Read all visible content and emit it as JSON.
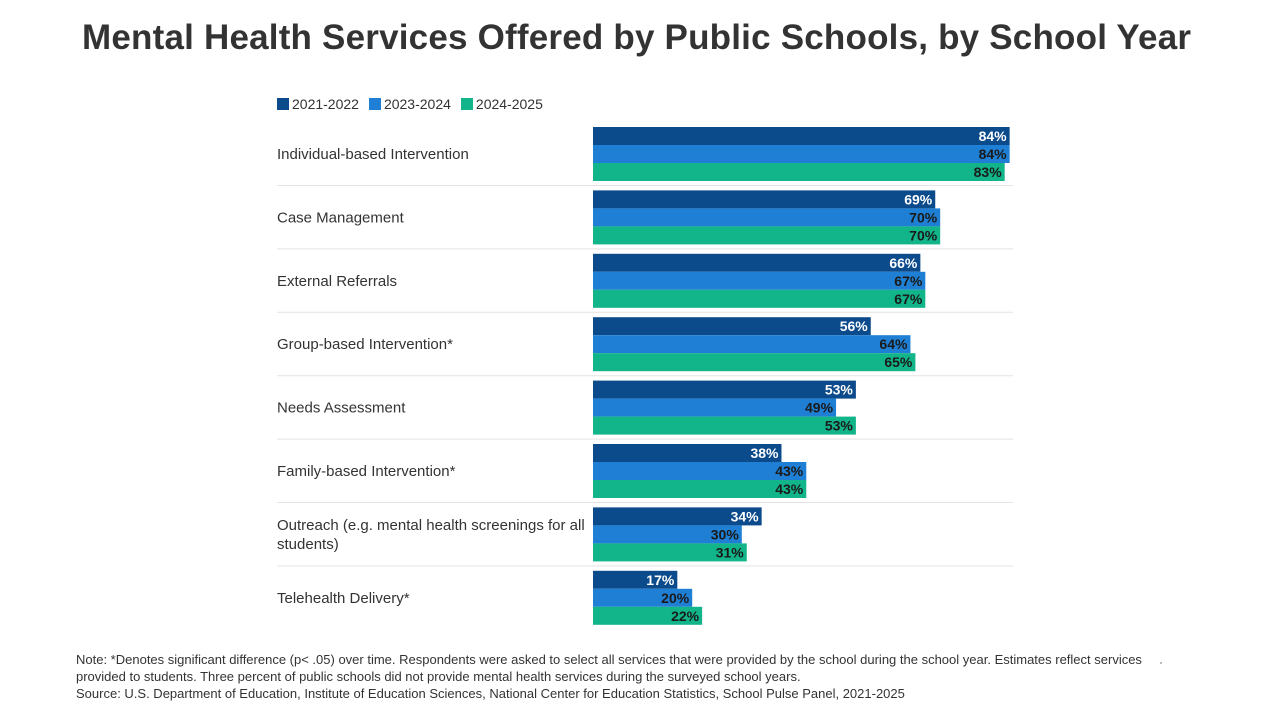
{
  "title": "Mental Health Services Offered by Public Schools, by School Year",
  "colors": {
    "s2021": "#0b4a8b",
    "s2023": "#1f7fd4",
    "s2024": "#12b489",
    "grid": "#e3e3e3"
  },
  "chart_data": {
    "type": "bar",
    "orientation": "horizontal",
    "title": "Mental Health Services Offered by Public Schools, by School Year",
    "xlabel": "",
    "ylabel": "",
    "xlim": [
      0,
      100
    ],
    "unit": "%",
    "legend_position": "top-left",
    "categories": [
      "Individual-based Intervention",
      "Case Management",
      "External Referrals",
      "Group-based Intervention*",
      "Needs Assessment",
      "Family-based Intervention*",
      "Outreach (e.g. mental health screenings for all students)",
      "Telehealth Delivery*"
    ],
    "category_lines": [
      [
        "Individual-based Intervention"
      ],
      [
        "Case Management"
      ],
      [
        "External Referrals"
      ],
      [
        "Group-based Intervention*"
      ],
      [
        "Needs Assessment"
      ],
      [
        "Family-based Intervention*"
      ],
      [
        "Outreach (e.g. mental health screenings for all",
        "students)"
      ],
      [
        "Telehealth Delivery*"
      ]
    ],
    "series": [
      {
        "name": "2021-2022",
        "values": [
          84,
          69,
          66,
          56,
          53,
          38,
          34,
          17
        ]
      },
      {
        "name": "2023-2024",
        "values": [
          84,
          70,
          67,
          64,
          49,
          43,
          30,
          20
        ]
      },
      {
        "name": "2024-2025",
        "values": [
          83,
          70,
          67,
          65,
          53,
          43,
          31,
          22
        ]
      }
    ]
  },
  "note": {
    "line1": "Note: *Denotes significant difference (p< .05) over time. Respondents were asked to select all services that were provided by the school during the school year. Estimates reflect services provided to students. Three percent of public schools did not provide mental health services during the surveyed school years.",
    "source": "Source: U.S. Department of Education, Institute of Education Sciences, National Center for Education Statistics, School Pulse Panel, 2021-2025"
  }
}
